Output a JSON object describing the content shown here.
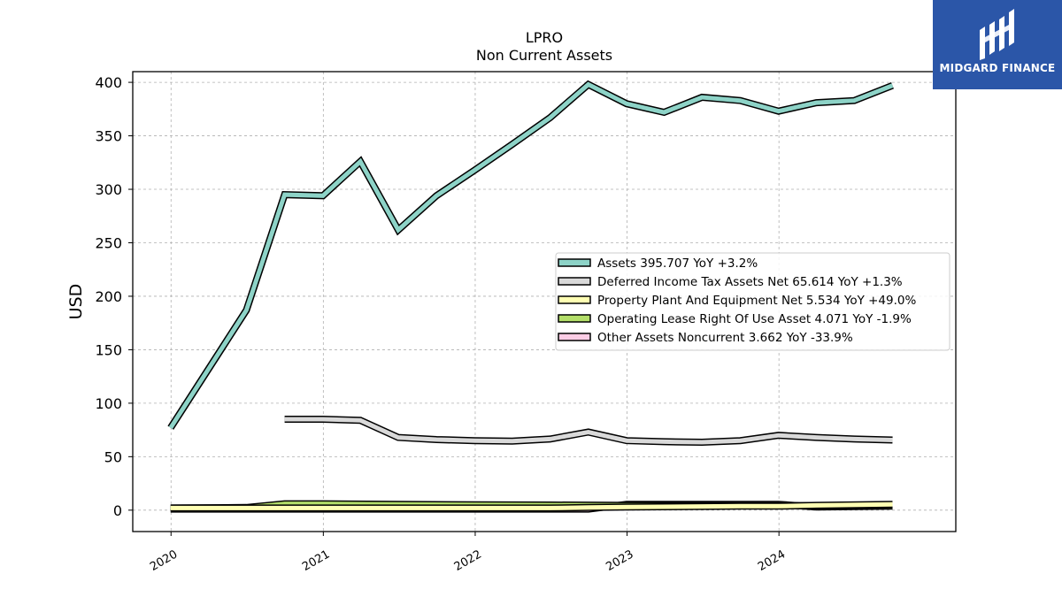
{
  "chart_data": {
    "type": "line",
    "title": "LPRO",
    "subtitle": "Non Current  Assets",
    "ylabel": "USD",
    "xlabel": "",
    "ylim": [
      -20,
      410
    ],
    "xlim": [
      "2019-10-01",
      "2025-03-01"
    ],
    "yticks": [
      0,
      50,
      100,
      150,
      200,
      250,
      300,
      350,
      400
    ],
    "xticks": [
      "2020",
      "2021",
      "2022",
      "2023",
      "2024"
    ],
    "grid": true,
    "legend_position": "center-right",
    "series": [
      {
        "name": "Assets",
        "legend": "Assets  395.707 YoY +3.2%",
        "color": "#8dd3c7",
        "points": [
          [
            "2019-12-31",
            77
          ],
          [
            "2020-06-30",
            187
          ],
          [
            "2020-09-30",
            295
          ],
          [
            "2020-12-31",
            294
          ],
          [
            "2021-03-31",
            326
          ],
          [
            "2021-06-30",
            262
          ],
          [
            "2021-09-30",
            294
          ],
          [
            "2021-12-31",
            318
          ],
          [
            "2022-03-31",
            342
          ],
          [
            "2022-06-30",
            367
          ],
          [
            "2022-09-30",
            398
          ],
          [
            "2022-12-31",
            380
          ],
          [
            "2023-03-31",
            372
          ],
          [
            "2023-06-30",
            386
          ],
          [
            "2023-09-30",
            383
          ],
          [
            "2023-12-31",
            373
          ],
          [
            "2024-03-31",
            381
          ],
          [
            "2024-06-30",
            383
          ],
          [
            "2024-09-30",
            397
          ]
        ]
      },
      {
        "name": "Deferred Income Tax Assets Net",
        "legend": "Deferred Income Tax Assets Net  65.614 YoY +1.3%",
        "color": "#d9d9d9",
        "points": [
          [
            "2020-09-30",
            85
          ],
          [
            "2020-12-31",
            85
          ],
          [
            "2021-03-31",
            84
          ],
          [
            "2021-06-30",
            68
          ],
          [
            "2021-09-30",
            66
          ],
          [
            "2021-12-31",
            65
          ],
          [
            "2022-03-31",
            64.5
          ],
          [
            "2022-06-30",
            66.5
          ],
          [
            "2022-09-30",
            73
          ],
          [
            "2022-12-31",
            65
          ],
          [
            "2023-03-31",
            64
          ],
          [
            "2023-06-30",
            63.5
          ],
          [
            "2023-09-30",
            65
          ],
          [
            "2023-12-31",
            70
          ],
          [
            "2024-03-31",
            68
          ],
          [
            "2024-06-30",
            66.5
          ],
          [
            "2024-09-30",
            65.6
          ]
        ]
      },
      {
        "name": "Property Plant And Equipment Net",
        "legend": "Property Plant And Equipment Net  5.534 YoY +49.0%",
        "color": "#ffffb3",
        "points": [
          [
            "2019-12-31",
            2
          ],
          [
            "2020-06-30",
            2
          ],
          [
            "2020-09-30",
            2
          ],
          [
            "2020-12-31",
            2
          ],
          [
            "2021-06-30",
            2
          ],
          [
            "2021-12-31",
            2
          ],
          [
            "2022-06-30",
            2
          ],
          [
            "2022-09-30",
            2.5
          ],
          [
            "2022-12-31",
            3
          ],
          [
            "2023-06-30",
            3.5
          ],
          [
            "2023-09-30",
            3.7
          ],
          [
            "2023-12-31",
            3.7
          ],
          [
            "2024-03-31",
            4.5
          ],
          [
            "2024-09-30",
            5.5
          ]
        ]
      },
      {
        "name": "Operating Lease Right Of Use Asset",
        "legend": "Operating Lease Right Of Use Asset  4.071 YoY -1.9%",
        "color": "#b3de69",
        "points": [
          [
            "2019-12-31",
            2
          ],
          [
            "2020-06-30",
            2.5
          ],
          [
            "2020-09-30",
            6
          ],
          [
            "2020-12-31",
            6
          ],
          [
            "2021-06-30",
            5.5
          ],
          [
            "2021-12-31",
            5
          ],
          [
            "2022-06-30",
            4.8
          ],
          [
            "2022-12-31",
            4.5
          ],
          [
            "2023-06-30",
            4.4
          ],
          [
            "2023-12-31",
            4.3
          ],
          [
            "2024-03-31",
            4.2
          ],
          [
            "2024-09-30",
            4.1
          ]
        ]
      },
      {
        "name": "Other Assets Noncurrent",
        "legend": "Other Assets Noncurrent  3.662 YoY -33.9%",
        "color": "#fccde5",
        "points": [
          [
            "2019-12-31",
            1
          ],
          [
            "2020-06-30",
            1
          ],
          [
            "2020-09-30",
            1
          ],
          [
            "2020-12-31",
            1
          ],
          [
            "2021-06-30",
            1
          ],
          [
            "2021-12-31",
            1
          ],
          [
            "2022-06-30",
            1
          ],
          [
            "2022-09-30",
            1
          ],
          [
            "2022-12-31",
            5.5
          ],
          [
            "2023-06-30",
            5.5
          ],
          [
            "2023-12-31",
            5.5
          ],
          [
            "2024-03-31",
            3
          ],
          [
            "2024-09-30",
            3.7
          ]
        ]
      }
    ]
  },
  "brand": {
    "name": "MIDGARD FINANCE",
    "background": "#2b56a8"
  }
}
